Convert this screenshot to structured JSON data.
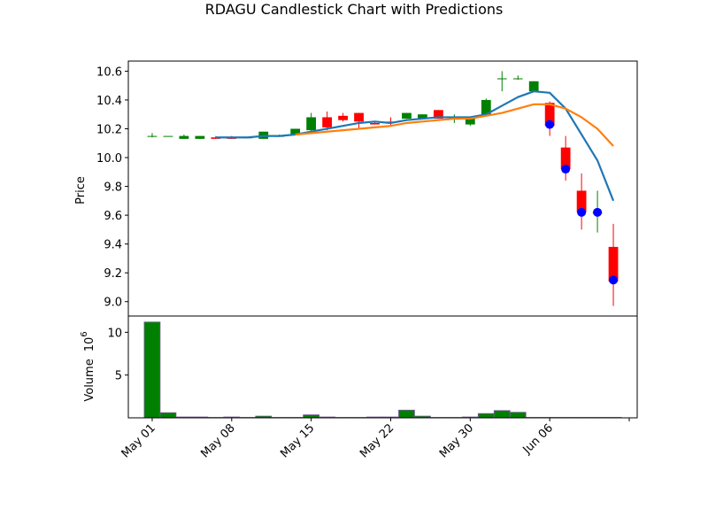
{
  "chart_data": {
    "type": "candlestick",
    "title": "RDAGU Candlestick Chart with Predictions",
    "price_panel": {
      "ylabel": "Price",
      "ylim": [
        8.9,
        10.67
      ],
      "yticks": [
        "9.0",
        "9.2",
        "9.4",
        "9.6",
        "9.8",
        "10.0",
        "10.2",
        "10.4",
        "10.6"
      ],
      "ytick_values": [
        9.0,
        9.2,
        9.4,
        9.6,
        9.8,
        10.0,
        10.2,
        10.4,
        10.6
      ]
    },
    "volume_panel": {
      "ylabel": "Volume",
      "ylabel_exponent": "10",
      "ylabel_exponent_power": "6",
      "ylim": [
        0,
        11.9
      ],
      "yticks": [
        "5",
        "10"
      ],
      "ytick_values": [
        5,
        10
      ]
    },
    "xlim": [
      -1.5,
      30.5
    ],
    "xticks": [
      {
        "label": "May 01",
        "x": 0
      },
      {
        "label": "May 08",
        "x": 5
      },
      {
        "label": "May 15",
        "x": 10
      },
      {
        "label": "May 22",
        "x": 15
      },
      {
        "label": "May 30",
        "x": 20
      },
      {
        "label": "Jun 06",
        "x": 25
      },
      {
        "label": "",
        "x": 30
      }
    ],
    "candles": [
      {
        "x": 0,
        "open": 10.15,
        "high": 10.17,
        "low": 10.14,
        "close": 10.15,
        "volume": 11.2
      },
      {
        "x": 1,
        "open": 10.15,
        "high": 10.15,
        "low": 10.15,
        "close": 10.15,
        "volume": 0.6
      },
      {
        "x": 2,
        "open": 10.13,
        "high": 10.16,
        "low": 10.13,
        "close": 10.15,
        "volume": 0.1
      },
      {
        "x": 3,
        "open": 10.13,
        "high": 10.15,
        "low": 10.13,
        "close": 10.15,
        "volume": 0.1
      },
      {
        "x": 4,
        "open": 10.14,
        "high": 10.15,
        "low": 10.13,
        "close": 10.13,
        "volume": 0.05
      },
      {
        "x": 5,
        "open": 10.14,
        "high": 10.15,
        "low": 10.13,
        "close": 10.13,
        "volume": 0.1
      },
      {
        "x": 6,
        "open": 10.14,
        "high": 10.14,
        "low": 10.14,
        "close": 10.14,
        "volume": 0.05
      },
      {
        "x": 7,
        "open": 10.13,
        "high": 10.18,
        "low": 10.13,
        "close": 10.18,
        "volume": 0.2
      },
      {
        "x": 8,
        "open": 10.15,
        "high": 10.16,
        "low": 10.15,
        "close": 10.15,
        "volume": 0.05
      },
      {
        "x": 9,
        "open": 10.16,
        "high": 10.2,
        "low": 10.16,
        "close": 10.2,
        "volume": 0.05
      },
      {
        "x": 10,
        "open": 10.19,
        "high": 10.31,
        "low": 10.17,
        "close": 10.28,
        "volume": 0.35
      },
      {
        "x": 11,
        "open": 10.28,
        "high": 10.32,
        "low": 10.19,
        "close": 10.21,
        "volume": 0.1
      },
      {
        "x": 12,
        "open": 10.29,
        "high": 10.31,
        "low": 10.25,
        "close": 10.26,
        "volume": 0.05
      },
      {
        "x": 13,
        "open": 10.31,
        "high": 10.31,
        "low": 10.2,
        "close": 10.25,
        "volume": 0.05
      },
      {
        "x": 14,
        "open": 10.24,
        "high": 10.25,
        "low": 10.23,
        "close": 10.23,
        "volume": 0.1
      },
      {
        "x": 15,
        "open": 10.25,
        "high": 10.28,
        "low": 10.22,
        "close": 10.24,
        "volume": 0.1
      },
      {
        "x": 16,
        "open": 10.27,
        "high": 10.31,
        "low": 10.27,
        "close": 10.31,
        "volume": 0.9
      },
      {
        "x": 17,
        "open": 10.27,
        "high": 10.3,
        "low": 10.27,
        "close": 10.3,
        "volume": 0.2
      },
      {
        "x": 18,
        "open": 10.33,
        "high": 10.33,
        "low": 10.27,
        "close": 10.27,
        "volume": 0.05
      },
      {
        "x": 19,
        "open": 10.27,
        "high": 10.3,
        "low": 10.24,
        "close": 10.27,
        "volume": 0.05
      },
      {
        "x": 20,
        "open": 10.23,
        "high": 10.27,
        "low": 10.22,
        "close": 10.27,
        "volume": 0.1
      },
      {
        "x": 21,
        "open": 10.3,
        "high": 10.41,
        "low": 10.3,
        "close": 10.4,
        "volume": 0.5
      },
      {
        "x": 22,
        "open": 10.55,
        "high": 10.6,
        "low": 10.46,
        "close": 10.55,
        "volume": 0.85
      },
      {
        "x": 23,
        "open": 10.55,
        "high": 10.57,
        "low": 10.54,
        "close": 10.55,
        "volume": 0.65
      },
      {
        "x": 24,
        "open": 10.46,
        "high": 10.53,
        "low": 10.46,
        "close": 10.53,
        "volume": 0.05
      },
      {
        "x": 25,
        "open": 10.38,
        "high": 10.39,
        "low": 10.15,
        "close": 10.22,
        "volume": 0.05
      },
      {
        "x": 26,
        "open": 10.07,
        "high": 10.15,
        "low": 9.84,
        "close": 9.92,
        "volume": 0.05
      },
      {
        "x": 27,
        "open": 9.77,
        "high": 9.89,
        "low": 9.5,
        "close": 9.62,
        "volume": 0.05
      },
      {
        "x": 28,
        "open": 9.62,
        "high": 9.77,
        "low": 9.48,
        "close": 9.62,
        "volume": 0.05
      },
      {
        "x": 29,
        "open": 9.38,
        "high": 9.54,
        "low": 8.97,
        "close": 9.14,
        "volume": 0.05
      }
    ],
    "prediction_points": [
      {
        "x": 25,
        "y": 10.23
      },
      {
        "x": 26,
        "y": 9.92
      },
      {
        "x": 27,
        "y": 9.62
      },
      {
        "x": 28,
        "y": 9.62
      },
      {
        "x": 29,
        "y": 9.15
      }
    ],
    "series": [
      {
        "color": "#1f77b4",
        "points": [
          [
            4,
            10.14
          ],
          [
            5,
            10.14
          ],
          [
            6,
            10.14
          ],
          [
            7,
            10.15
          ],
          [
            8,
            10.15
          ],
          [
            9,
            10.16
          ],
          [
            10,
            10.18
          ],
          [
            11,
            10.2
          ],
          [
            12,
            10.22
          ],
          [
            13,
            10.24
          ],
          [
            14,
            10.25
          ],
          [
            15,
            10.24
          ],
          [
            16,
            10.26
          ],
          [
            17,
            10.27
          ],
          [
            18,
            10.28
          ],
          [
            19,
            10.28
          ],
          [
            20,
            10.28
          ],
          [
            21,
            10.3
          ],
          [
            22,
            10.36
          ],
          [
            23,
            10.42
          ],
          [
            24,
            10.46
          ],
          [
            25,
            10.45
          ],
          [
            26,
            10.34
          ],
          [
            27,
            10.16
          ],
          [
            28,
            9.98
          ],
          [
            29,
            9.7
          ]
        ]
      },
      {
        "color": "#ff7f0e",
        "points": [
          [
            9,
            10.16
          ],
          [
            10,
            10.17
          ],
          [
            11,
            10.18
          ],
          [
            12,
            10.19
          ],
          [
            13,
            10.2
          ],
          [
            14,
            10.21
          ],
          [
            15,
            10.22
          ],
          [
            16,
            10.24
          ],
          [
            17,
            10.25
          ],
          [
            18,
            10.26
          ],
          [
            19,
            10.27
          ],
          [
            20,
            10.27
          ],
          [
            21,
            10.29
          ],
          [
            22,
            10.31
          ],
          [
            23,
            10.34
          ],
          [
            24,
            10.37
          ],
          [
            25,
            10.37
          ],
          [
            26,
            10.34
          ],
          [
            27,
            10.28
          ],
          [
            28,
            10.2
          ],
          [
            29,
            10.08
          ]
        ]
      }
    ],
    "colors": {
      "up": "#008000",
      "down": "#ff0000",
      "prediction_marker": "#0000ff",
      "volume_edge": "#7a5a9a"
    }
  }
}
